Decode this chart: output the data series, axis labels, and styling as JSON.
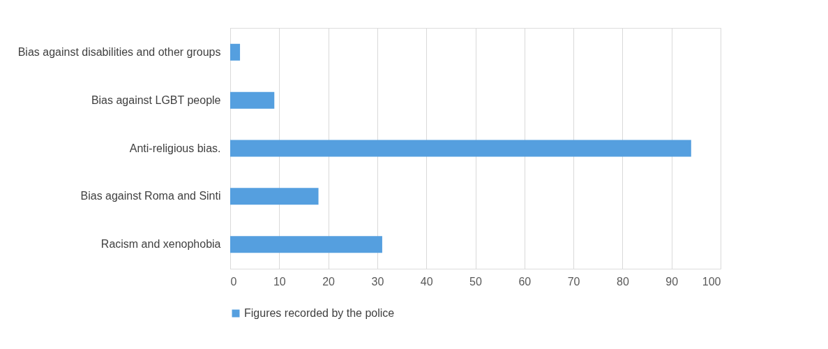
{
  "chart_data": {
    "type": "bar",
    "orientation": "horizontal",
    "categories": [
      "Bias against disabilities  and other groups",
      "Bias against LGBT people",
      "Anti-religious bias.",
      "Bias against Roma and Sinti",
      "Racism and xenophobia"
    ],
    "series": [
      {
        "name": "Figures recorded by the police",
        "color": "#559fdf",
        "values": [
          2,
          9,
          94,
          18,
          31
        ]
      }
    ],
    "xlim": [
      0,
      100
    ],
    "xticks": [
      0,
      10,
      20,
      30,
      40,
      50,
      60,
      70,
      80,
      90,
      100
    ],
    "grid": "x",
    "legend": "bottom"
  }
}
